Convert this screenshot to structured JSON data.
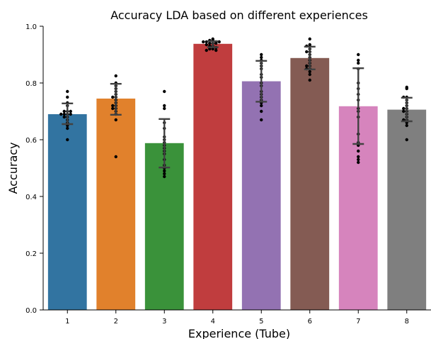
{
  "chart_data": {
    "type": "bar",
    "title": "Accuracy LDA based on different experiences",
    "xlabel": "Experience (Tube)",
    "ylabel": "Accuracy",
    "ylim": [
      0,
      1
    ],
    "yticks": [
      "0.0",
      "0.2",
      "0.4",
      "0.6",
      "0.8",
      "1.0"
    ],
    "yticks_values": [
      0.0,
      0.2,
      0.4,
      0.6,
      0.8,
      1.0
    ],
    "categories": [
      "1",
      "2",
      "3",
      "4",
      "5",
      "6",
      "7",
      "8"
    ],
    "values": [
      0.69,
      0.745,
      0.588,
      0.938,
      0.806,
      0.888,
      0.718,
      0.706
    ],
    "error_bars": [
      [
        0.655,
        0.728
      ],
      [
        0.688,
        0.797
      ],
      [
        0.502,
        0.673
      ],
      [
        0.926,
        0.947
      ],
      [
        0.734,
        0.878
      ],
      [
        0.848,
        0.928
      ],
      [
        0.585,
        0.852
      ],
      [
        0.665,
        0.748
      ]
    ],
    "colors": [
      "#3274a1",
      "#e1812c",
      "#3a923a",
      "#c03d3e",
      "#9372b2",
      "#845b53",
      "#d684bd",
      "#7f7f7f"
    ],
    "points": [
      [
        0.77,
        0.75,
        0.73,
        0.72,
        0.7,
        0.7,
        0.7,
        0.69,
        0.69,
        0.69,
        0.69,
        0.68,
        0.68,
        0.67,
        0.66,
        0.65,
        0.64,
        0.6
      ],
      [
        0.825,
        0.8,
        0.79,
        0.78,
        0.77,
        0.76,
        0.75,
        0.75,
        0.74,
        0.73,
        0.72,
        0.72,
        0.71,
        0.71,
        0.7,
        0.69,
        0.67,
        0.54
      ],
      [
        0.77,
        0.72,
        0.71,
        0.66,
        0.64,
        0.61,
        0.6,
        0.59,
        0.58,
        0.57,
        0.56,
        0.55,
        0.53,
        0.51,
        0.5,
        0.49,
        0.48,
        0.47
      ],
      [
        0.955,
        0.95,
        0.95,
        0.945,
        0.945,
        0.945,
        0.945,
        0.94,
        0.94,
        0.94,
        0.935,
        0.93,
        0.93,
        0.925,
        0.92,
        0.92,
        0.915,
        0.915
      ],
      [
        0.9,
        0.89,
        0.88,
        0.87,
        0.86,
        0.85,
        0.83,
        0.82,
        0.8,
        0.79,
        0.77,
        0.76,
        0.75,
        0.74,
        0.73,
        0.72,
        0.7,
        0.67
      ],
      [
        0.955,
        0.935,
        0.93,
        0.93,
        0.92,
        0.91,
        0.91,
        0.9,
        0.89,
        0.88,
        0.87,
        0.86,
        0.86,
        0.85,
        0.85,
        0.84,
        0.83,
        0.81
      ],
      [
        0.9,
        0.88,
        0.87,
        0.85,
        0.8,
        0.78,
        0.76,
        0.74,
        0.71,
        0.7,
        0.68,
        0.62,
        0.59,
        0.58,
        0.56,
        0.54,
        0.53,
        0.52
      ],
      [
        0.785,
        0.78,
        0.75,
        0.75,
        0.74,
        0.73,
        0.72,
        0.71,
        0.71,
        0.7,
        0.7,
        0.69,
        0.68,
        0.67,
        0.67,
        0.66,
        0.65,
        0.6
      ]
    ]
  }
}
